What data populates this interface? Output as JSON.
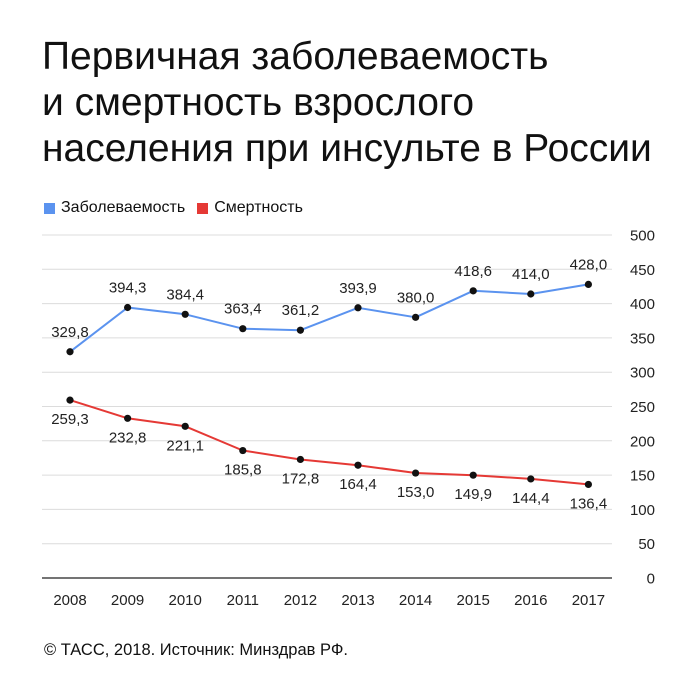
{
  "title_lines": [
    "Первичная заболеваемость",
    "и смертность взрослого",
    "населения при инсульте в России"
  ],
  "source": "© ТАСС, 2018. Источник: Минздрав РФ.",
  "chart_data": {
    "type": "line",
    "x": [
      "2008",
      "2009",
      "2010",
      "2011",
      "2012",
      "2013",
      "2014",
      "2015",
      "2016",
      "2017"
    ],
    "series": [
      {
        "name": "Заболеваемость",
        "color": "#5b93ef",
        "values": [
          329.8,
          394.3,
          384.4,
          363.4,
          361.2,
          393.9,
          380.0,
          418.6,
          414.0,
          428.0
        ],
        "labels": [
          "329,8",
          "394,3",
          "384,4",
          "363,4",
          "361,2",
          "393,9",
          "380,0",
          "418,6",
          "414,0",
          "428,0"
        ]
      },
      {
        "name": "Смертность",
        "color": "#e53935",
        "values": [
          259.3,
          232.8,
          221.1,
          185.8,
          172.8,
          164.4,
          153.0,
          149.9,
          144.4,
          136.4
        ],
        "labels": [
          "259,3",
          "232,8",
          "221,1",
          "185,8",
          "172,8",
          "164,4",
          "153,0",
          "149,9",
          "144,4",
          "136,4"
        ]
      }
    ],
    "ylim": [
      0,
      500
    ],
    "yticks": [
      "0",
      "50",
      "100",
      "150",
      "200",
      "250",
      "300",
      "350",
      "400",
      "450",
      "500"
    ],
    "y_axis_position": "right",
    "grid": true,
    "legend_position": "top-left",
    "marker_color": "#111111"
  }
}
